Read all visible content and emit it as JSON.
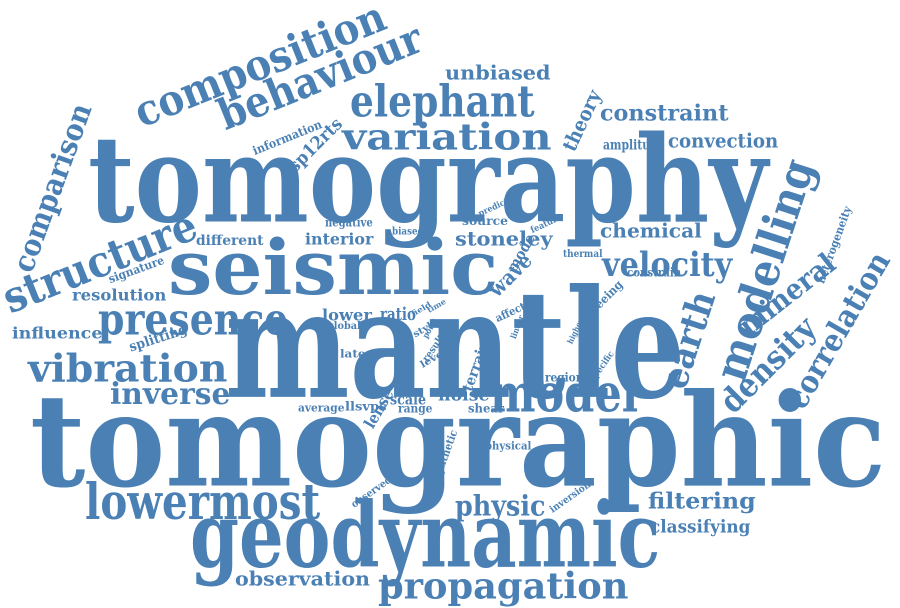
{
  "colors": {
    "word": "#4a80b4",
    "background": "#ffffff"
  },
  "words": [
    "tomographic",
    "mantle",
    "tomography",
    "seismic",
    "geodynamic",
    "modelling",
    "model",
    "lowermost",
    "composition",
    "elephant",
    "behaviour",
    "variation",
    "presence",
    "structure",
    "vibration",
    "propagation",
    "earth",
    "velocity",
    "density",
    "correlation",
    "mineral",
    "inverse",
    "physic",
    "filtering",
    "constraint",
    "comparison",
    "unbiased",
    "observation",
    "classifying",
    "stoneley",
    "chemical",
    "convection",
    "theory",
    "resolution",
    "noise",
    "interior",
    "different",
    "influence",
    "heterogeneity",
    "splitting",
    "sp12rts",
    "information",
    "amplitude",
    "wave",
    "mode",
    "source",
    "negative",
    "biased",
    "signature",
    "lower",
    "ratio",
    "scale",
    "region",
    "shear",
    "range",
    "lense",
    "average",
    "llsvps",
    "lateral",
    "global",
    "terrain",
    "synthetic",
    "physical",
    "observed",
    "inversion",
    "specific",
    "seeing",
    "constrain",
    "thermal",
    "feature",
    "predict",
    "higher",
    "linear",
    "affect",
    "level",
    "result",
    "point",
    "style",
    "field",
    "time"
  ]
}
